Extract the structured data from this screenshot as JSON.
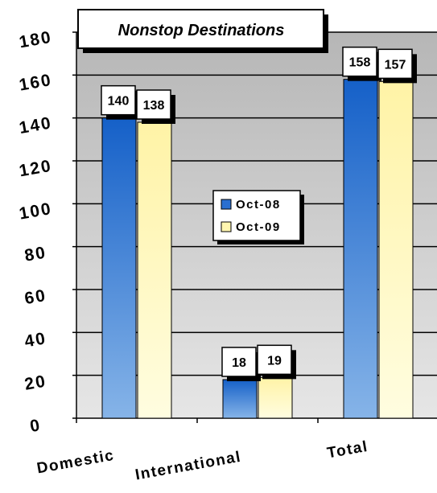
{
  "chart_data": {
    "type": "bar",
    "title": "Nonstop Destinations",
    "categories": [
      "Domestic",
      "International",
      "Total"
    ],
    "series": [
      {
        "name": "Oct-08",
        "values": [
          140,
          18,
          158
        ]
      },
      {
        "name": "Oct-09",
        "values": [
          138,
          19,
          157
        ]
      }
    ],
    "ylim": [
      0,
      180
    ],
    "yticks": [
      0,
      20,
      40,
      60,
      80,
      100,
      120,
      140,
      160,
      180
    ],
    "grid": true,
    "legend_position": "center",
    "data_labels": true,
    "colors": {
      "series_0_top": "#1560c8",
      "series_0_bottom": "#86b4e8",
      "series_1_top": "#fff3a6",
      "series_1_bottom": "#fffde0",
      "plot_background_top": "#b6b6b6",
      "plot_background_bottom": "#e6e6e6"
    }
  }
}
